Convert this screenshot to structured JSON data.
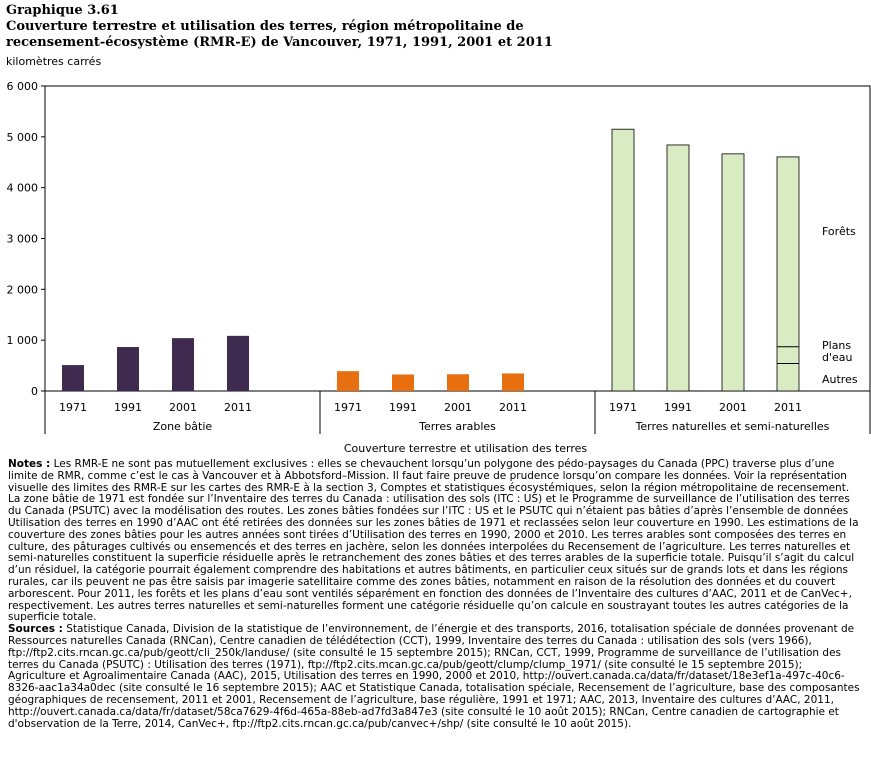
{
  "header": {
    "label": "Graphique 3.61",
    "title_line1": "Couverture terrestre et utilisation des terres, région métropolitaine de",
    "title_line2": "recensement-écosystème (RMR-E) de Vancouver, 1971, 1991, 2001 et 2011",
    "units": "kilomètres carrés"
  },
  "chart_data": {
    "type": "bar",
    "title": "Couverture terrestre et utilisation des terres, région métropolitaine de recensement-écosystème (RMR-E) de Vancouver, 1971, 1991, 2001 et 2011",
    "ylabel": "kilomètres carrés",
    "xlabel": "Couverture terrestre et utilisation des terres",
    "ylim": [
      0,
      6000
    ],
    "yticks": [
      0,
      1000,
      2000,
      3000,
      4000,
      5000,
      6000
    ],
    "ytick_labels": [
      "0",
      "1 000",
      "2 000",
      "3 000",
      "4 000",
      "5 000",
      "6 000"
    ],
    "groups": [
      {
        "name": "Zone bâtie",
        "color": "#3f2b4f",
        "categories": [
          "1971",
          "1991",
          "2001",
          "2011"
        ],
        "values": [
          510,
          865,
          1040,
          1085
        ]
      },
      {
        "name": "Terres arables",
        "color": "#e86f10",
        "categories": [
          "1971",
          "1991",
          "2001",
          "2011"
        ],
        "values": [
          390,
          325,
          330,
          345
        ]
      },
      {
        "name": "Terres naturelles et semi-naturelles",
        "color": "#d9ebc2",
        "categories": [
          "1971",
          "1991",
          "2001",
          "2011"
        ],
        "values": [
          5150,
          4840,
          4665,
          4605
        ]
      }
    ],
    "stack_2011_natural": [
      {
        "name": "Autres",
        "value": 540
      },
      {
        "name": "Plans d'eau",
        "value": 330
      },
      {
        "name": "Forêts",
        "value": 3735
      }
    ],
    "right_labels": {
      "forest": "Forêts",
      "water_line1": "Plans",
      "water_line2": "d'eau",
      "other": "Autres"
    }
  },
  "notes": {
    "notes_label": "Notes :",
    "notes_text": "Les RMR-E ne sont pas mutuellement exclusives : elles se chevauchent lorsqu’un polygone des pédo-paysages du Canada (PPC) traverse plus d’une limite de RMR, comme c’est le cas à Vancouver et à Abbotsford–Mission. Il faut faire preuve de prudence lorsqu’on compare les données. Voir la représentation visuelle des limites des RMR-E sur les cartes des RMR-E à la section 3, Comptes et statistiques écosystémiques, selon la région métropolitaine de recensement. La zone bâtie de 1971 est fondée sur l’Inventaire des terres du Canada : utilisation des sols (ITC : US) et le Programme de surveillance de l’utilisation des terres du Canada (PSUTC) avec la modélisation des routes. Les zones bâties fondées sur l’ITC : US et le PSUTC qui n’étaient pas bâties d’après l’ensemble de données Utilisation des terres en 1990 d’AAC ont été retirées des données sur les zones bâties de 1971 et reclassées selon leur couverture en 1990. Les estimations de la couverture des zones bâties pour les autres années sont tirées d’Utilisation des terres en 1990, 2000 et 2010. Les terres arables sont composées des terres en culture, des pâturages cultivés ou ensemencés et des terres en jachère, selon les données interpolées du Recensement de l’agriculture. Les terres naturelles et semi-naturelles constituent la superficie résiduelle après le retranchement des zones bâties et des terres arables de la superficie totale. Puisqu’il s’agit du calcul d’un résiduel, la catégorie pourrait également comprendre des habitations et autres bâtiments, en particulier ceux situés sur de grands lots et dans les régions rurales, car ils peuvent ne pas être saisis par imagerie satellitaire comme des zones bâties, notamment en raison de la résolution des données et du couvert arborescent. Pour 2011, les forêts et les plans d’eau sont ventilés séparément en fonction des données de l’Inventaire des cultures d’AAC, 2011 et de CanVec+, respectivement. Les autres terres naturelles et semi-naturelles forment une catégorie résiduelle qu’on calcule en soustrayant toutes les autres catégories de la superficie totale.",
    "sources_label": "Sources :",
    "sources_text": "Statistique Canada, Division de la statistique de l’environnement, de l’énergie et des transports, 2016, totalisation spéciale de données provenant de Ressources naturelles Canada (RNCan), Centre canadien de télédétection (CCT), 1999, Inventaire des terres du Canada : utilisation des sols (vers 1966), ftp://ftp2.cits.rncan.gc.ca/pub/geott/cli_250k/landuse/ (site consulté le 15 septembre 2015); RNCan, CCT, 1999, Programme de surveillance de l’utilisation des terres du Canada (PSUTC) : Utilisation des terres (1971), ftp://ftp2.cits.mcan.gc.ca/pub/geott/clump/clump_1971/ (site consulté le 15 septembre 2015); Agriculture et Agroalimentaire Canada (AAC), 2015, Utilisation des terres en 1990, 2000 et 2010, http://ouvert.canada.ca/data/fr/dataset/18e3ef1a-497c-40c6-8326-aac1a34a0dec (site consulté le 16 septembre 2015); AAC et Statistique Canada, totalisation spéciale, Recensement de l’agriculture, base des composantes géographiques de recensement, 2011 et 2001, Recensement de l’agriculture, base régulière, 1991 et 1971; AAC, 2013, Inventaire des cultures d’AAC, 2011, http://ouvert.canada.ca/data/fr/dataset/58ca7629-4f6d-465a-88eb-ad7fd3a847e3 (site consulté le 10 août 2015); RNCan, Centre canadien de cartographie et d'observation de la Terre, 2014, CanVec+, ftp://ftp2.cits.rncan.gc.ca/pub/canvec+/shp/ (site consulté le 10 août 2015)."
  }
}
